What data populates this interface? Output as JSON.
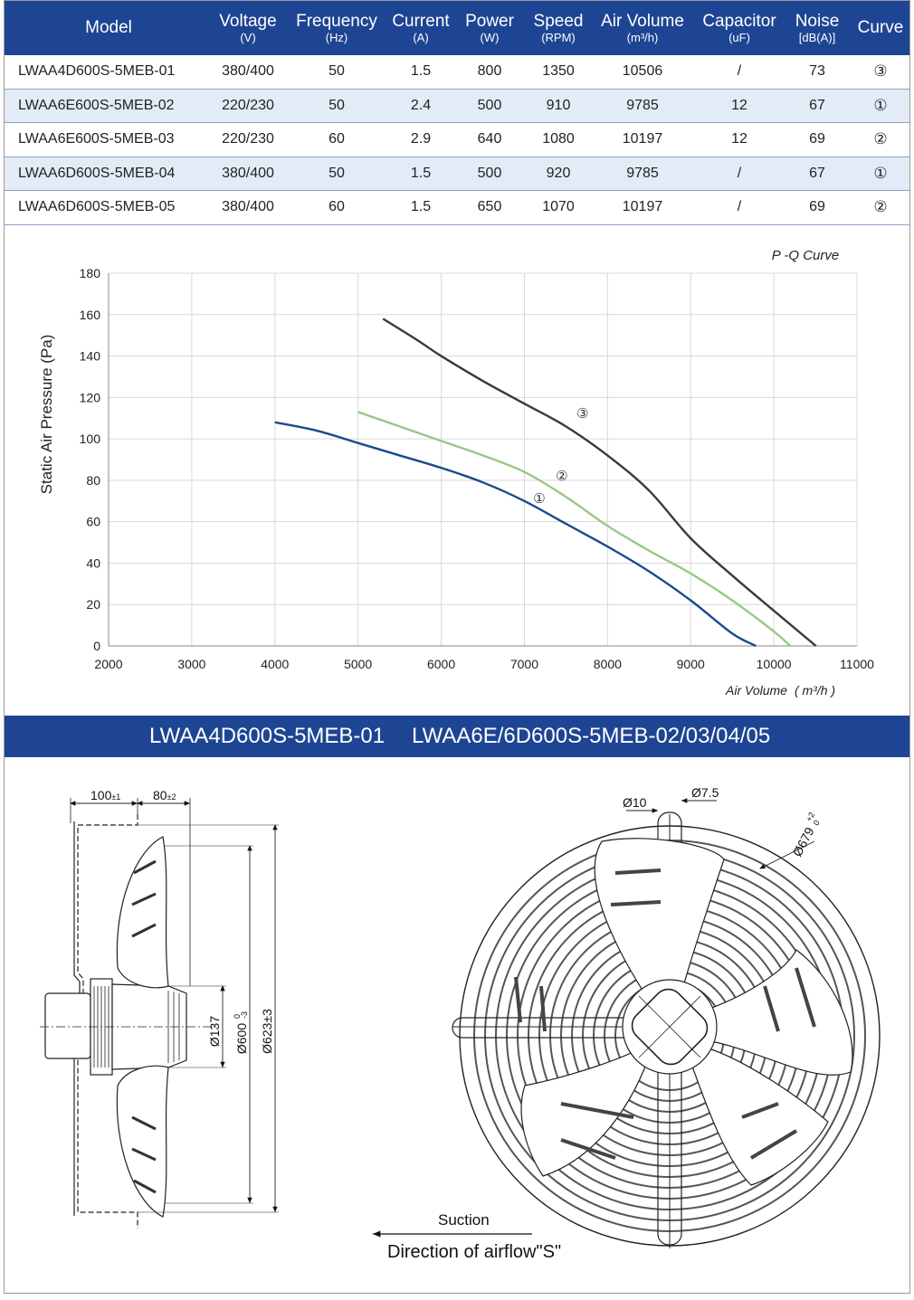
{
  "table": {
    "headers": [
      {
        "label": "Model",
        "unit": ""
      },
      {
        "label": "Voltage",
        "unit": "(V)"
      },
      {
        "label": "Frequency",
        "unit": "(Hz)"
      },
      {
        "label": "Current",
        "unit": "(A)"
      },
      {
        "label": "Power",
        "unit": "(W)"
      },
      {
        "label": "Speed",
        "unit": "(RPM)"
      },
      {
        "label": "Air Volume",
        "unit": "(m³/h)"
      },
      {
        "label": "Capacitor",
        "unit": "(uF)"
      },
      {
        "label": "Noise",
        "unit": "[dB(A)]"
      },
      {
        "label": "Curve",
        "unit": ""
      }
    ],
    "rows": [
      [
        "LWAA4D600S-5MEB-01",
        "380/400",
        "50",
        "1.5",
        "800",
        "1350",
        "10506",
        "/",
        "73",
        "③"
      ],
      [
        "LWAA6E600S-5MEB-02",
        "220/230",
        "50",
        "2.4",
        "500",
        "910",
        "9785",
        "12",
        "67",
        "①"
      ],
      [
        "LWAA6E600S-5MEB-03",
        "220/230",
        "60",
        "2.9",
        "640",
        "1080",
        "10197",
        "12",
        "69",
        "②"
      ],
      [
        "LWAA6D600S-5MEB-04",
        "380/400",
        "50",
        "1.5",
        "500",
        "920",
        "9785",
        "/",
        "67",
        "①"
      ],
      [
        "LWAA6D600S-5MEB-05",
        "380/400",
        "60",
        "1.5",
        "650",
        "1070",
        "10197",
        "/",
        "69",
        "②"
      ]
    ]
  },
  "chart_data": {
    "type": "line",
    "title": "P -Q Curve",
    "xlabel": "Air Volume",
    "xlabel_unit": "( m³/h )",
    "ylabel": "Static Air Pressure  (Pa)",
    "xlim": [
      2000,
      11000
    ],
    "ylim": [
      0,
      180
    ],
    "xticks": [
      2000,
      3000,
      4000,
      5000,
      6000,
      7000,
      8000,
      9000,
      10000,
      11000
    ],
    "yticks": [
      0,
      20,
      40,
      60,
      80,
      100,
      120,
      140,
      160,
      180
    ],
    "grid": true,
    "series": [
      {
        "name": "①",
        "color": "#1a4a8e",
        "label_at": [
          7180,
          69
        ],
        "points": [
          [
            4000,
            108
          ],
          [
            4500,
            104
          ],
          [
            5000,
            98
          ],
          [
            5500,
            92
          ],
          [
            6000,
            86
          ],
          [
            6500,
            79
          ],
          [
            7000,
            70
          ],
          [
            7500,
            59
          ],
          [
            8000,
            48
          ],
          [
            8500,
            36
          ],
          [
            9000,
            22
          ],
          [
            9500,
            6
          ],
          [
            9785,
            0
          ]
        ]
      },
      {
        "name": "②",
        "color": "#98c886",
        "label_at": [
          7450,
          80
        ],
        "points": [
          [
            5000,
            113
          ],
          [
            5500,
            106
          ],
          [
            6000,
            99
          ],
          [
            6500,
            92
          ],
          [
            7000,
            84
          ],
          [
            7500,
            72
          ],
          [
            8000,
            58
          ],
          [
            8500,
            46
          ],
          [
            9000,
            35
          ],
          [
            9500,
            22
          ],
          [
            10000,
            7
          ],
          [
            10197,
            0
          ]
        ]
      },
      {
        "name": "③",
        "color": "#3a3a3a",
        "label_at": [
          7700,
          110
        ],
        "points": [
          [
            5300,
            158
          ],
          [
            5700,
            148
          ],
          [
            6000,
            140
          ],
          [
            6500,
            128
          ],
          [
            7000,
            117
          ],
          [
            7500,
            106
          ],
          [
            8000,
            92
          ],
          [
            8500,
            75
          ],
          [
            9000,
            52
          ],
          [
            9500,
            34
          ],
          [
            10000,
            17
          ],
          [
            10506,
            0
          ]
        ]
      }
    ]
  },
  "band": {
    "model_a": "LWAA4D600S-5MEB-01",
    "model_b": "LWAA6E/6D600S-5MEB-02/03/04/05"
  },
  "drawing": {
    "dim_100": "100",
    "dim_100_tol": "±1",
    "dim_80": "80",
    "dim_80_tol": "±2",
    "dim_137": "Ø137",
    "dim_600": "Ø600",
    "dim_600_tol_upper": "0",
    "dim_600_tol_lower": "-3",
    "dim_623": "Ø623±3",
    "dim_10": "Ø10",
    "dim_75": "Ø7.5",
    "dim_679": "Ø679",
    "dim_679_tol_upper": "+2",
    "dim_679_tol_lower": "0",
    "suction": "Suction",
    "airflow": "Direction of airflow\"S\""
  }
}
